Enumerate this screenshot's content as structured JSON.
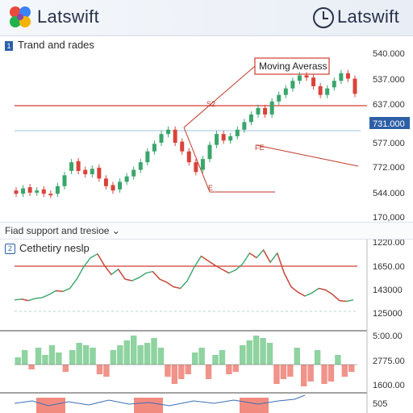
{
  "header": {
    "left_brand": "Latswift",
    "right_brand": "Latswift"
  },
  "panel1": {
    "title": "Trand and rades",
    "annotation_moving_avg": "Moving Averass",
    "annotation_small_1": "S2",
    "annotation_small_2": "FE",
    "annotation_small_3": "E",
    "price_tag": "731.000",
    "y_labels": [
      "540.000",
      "537.000",
      "637.000",
      "577.000",
      "772.000",
      "544.000",
      "170,000"
    ]
  },
  "support_dropdown": {
    "selected": "Fiad support and tresioe",
    "chevron": "chevron-down-icon"
  },
  "panel2": {
    "title": "Cethetiry neslp",
    "y_labels": [
      "1220.00",
      "1650.00",
      "143000",
      "125000",
      "5:00.00",
      "2775.00",
      "1600.00",
      "505"
    ]
  },
  "colors": {
    "up": "#3aa56b",
    "down": "#d9433a",
    "hist_up": "#8fd3a0",
    "hist_down": "#f0938a",
    "resistance": "#d23b33",
    "support": "#7fa8d6",
    "price_tag_bg": "#2d5fa6"
  },
  "chart_data": [
    {
      "type": "candlestick",
      "title": "Trand and rades",
      "annotations": [
        "Moving Averass",
        "S2",
        "FE",
        "E"
      ],
      "candles": [
        {
          "o": 544,
          "c": 541
        },
        {
          "o": 541,
          "c": 546
        },
        {
          "o": 547,
          "c": 542
        },
        {
          "o": 542,
          "c": 544
        },
        {
          "o": 545,
          "c": 541
        },
        {
          "o": 541,
          "c": 540
        },
        {
          "o": 541,
          "c": 548
        },
        {
          "o": 548,
          "c": 558
        },
        {
          "o": 562,
          "c": 570
        },
        {
          "o": 571,
          "c": 562
        },
        {
          "o": 563,
          "c": 559
        },
        {
          "o": 559,
          "c": 564
        },
        {
          "o": 565,
          "c": 555
        },
        {
          "o": 555,
          "c": 548
        },
        {
          "o": 549,
          "c": 544
        },
        {
          "o": 545,
          "c": 552
        },
        {
          "o": 552,
          "c": 557
        },
        {
          "o": 557,
          "c": 563
        },
        {
          "o": 563,
          "c": 570
        },
        {
          "o": 570,
          "c": 580
        },
        {
          "o": 580,
          "c": 587
        },
        {
          "o": 588,
          "c": 596
        },
        {
          "o": 596,
          "c": 600
        },
        {
          "o": 600,
          "c": 588
        },
        {
          "o": 589,
          "c": 580
        },
        {
          "o": 580,
          "c": 570
        },
        {
          "o": 570,
          "c": 561
        },
        {
          "o": 563,
          "c": 573
        },
        {
          "o": 573,
          "c": 586
        },
        {
          "o": 586,
          "c": 596
        },
        {
          "o": 596,
          "c": 590
        },
        {
          "o": 590,
          "c": 594
        },
        {
          "o": 594,
          "c": 600
        },
        {
          "o": 600,
          "c": 607
        },
        {
          "o": 607,
          "c": 614
        },
        {
          "o": 614,
          "c": 620
        },
        {
          "o": 620,
          "c": 614
        },
        {
          "o": 614,
          "c": 626
        },
        {
          "o": 626,
          "c": 632
        },
        {
          "o": 632,
          "c": 638
        },
        {
          "o": 638,
          "c": 645
        },
        {
          "o": 645,
          "c": 650
        },
        {
          "o": 650,
          "c": 648
        },
        {
          "o": 648,
          "c": 640
        },
        {
          "o": 640,
          "c": 632
        },
        {
          "o": 632,
          "c": 638
        },
        {
          "o": 639,
          "c": 645
        },
        {
          "o": 645,
          "c": 652
        },
        {
          "o": 652,
          "c": 647
        },
        {
          "o": 647,
          "c": 633
        }
      ],
      "levels": {
        "resistance": 630,
        "support": 610
      },
      "trendlines": [
        {
          "from": [
            22,
            596
          ],
          "to": [
            43,
            653
          ]
        },
        {
          "from": [
            27,
            585
          ],
          "to": [
            41,
            550
          ]
        }
      ]
    },
    {
      "type": "line",
      "title": "Cethetiry neslp",
      "values": [
        35,
        36,
        34,
        37,
        38,
        42,
        47,
        46,
        50,
        62,
        78,
        90,
        95,
        80,
        68,
        75,
        62,
        60,
        64,
        70,
        72,
        62,
        58,
        52,
        50,
        60,
        78,
        92,
        86,
        80,
        75,
        70,
        74,
        82,
        96,
        90,
        100,
        84,
        96,
        70,
        52,
        45,
        40,
        44,
        50,
        48,
        42,
        34,
        33,
        35
      ],
      "reference_level": 90
    },
    {
      "type": "bar",
      "values": [
        3,
        6,
        -2,
        7,
        4,
        8,
        5,
        -3,
        6,
        9,
        8,
        7,
        -4,
        -5,
        6,
        8,
        10,
        12,
        8,
        9,
        11,
        7,
        -5,
        -8,
        -6,
        -4,
        5,
        7,
        -6,
        4,
        6,
        -4,
        -3,
        8,
        10,
        12,
        11,
        9,
        -8,
        -6,
        -5,
        7,
        -9,
        -7,
        6,
        -8,
        -7,
        4,
        -5,
        -3
      ]
    }
  ]
}
